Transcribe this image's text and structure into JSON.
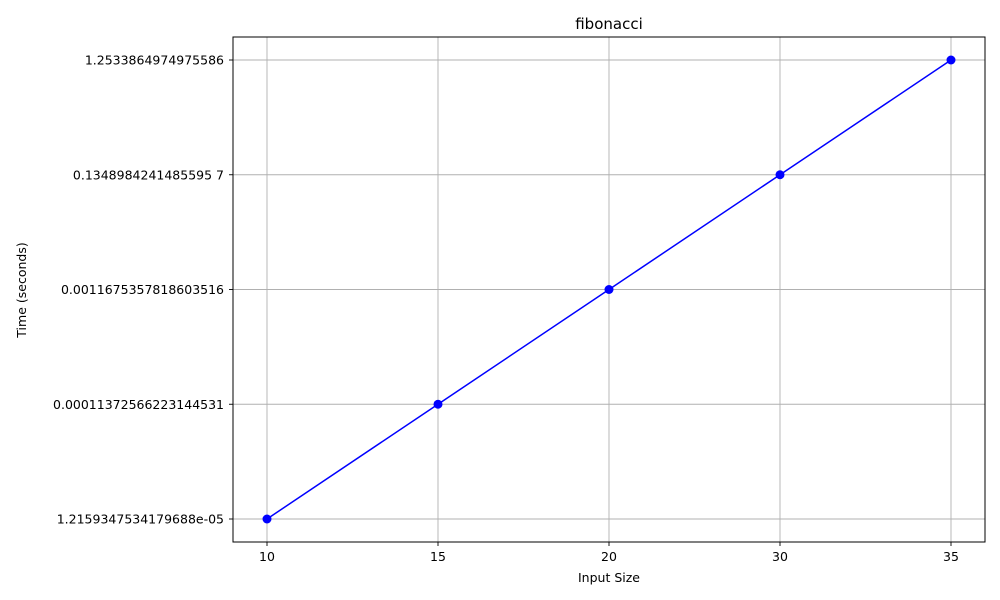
{
  "chart_data": {
    "type": "line",
    "title": "fibonacci",
    "xlabel": "Input Size",
    "ylabel": "Time (seconds)",
    "categories": [
      "10",
      "15",
      "20",
      "30",
      "35"
    ],
    "y_categories": [
      "1.2159347534179688e-05",
      "0.00011372566223144531",
      "0.0011675357818603516",
      "0.1348984241485595 7",
      "1.2533864974975586"
    ],
    "series": [
      {
        "x": [
          "10",
          "15",
          "20",
          "30",
          "35"
        ],
        "y": [
          "1.2159347534179688e-05",
          "0.00011372566223144531",
          "0.0011675357818603516",
          "0.1348984241485595 7",
          "1.2533864974975586"
        ],
        "color": "#0000ff",
        "marker": "circle"
      }
    ],
    "grid": true
  }
}
